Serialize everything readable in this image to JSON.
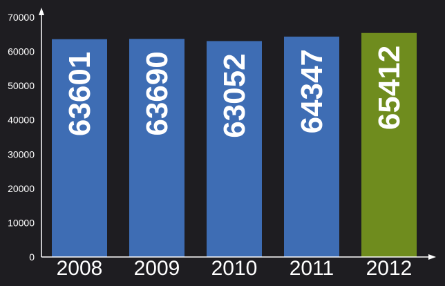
{
  "chart_data": {
    "type": "bar",
    "title": "",
    "xlabel": "",
    "ylabel": "",
    "categories": [
      "2008",
      "2009",
      "2010",
      "2011",
      "2012"
    ],
    "values": [
      63601,
      63690,
      63052,
      64347,
      65412
    ],
    "data_labels": [
      "63601",
      "63690",
      "63052",
      "64347",
      "65412"
    ],
    "ylim": [
      0,
      70000
    ],
    "yticks": [
      0,
      10000,
      20000,
      30000,
      40000,
      50000,
      60000,
      70000
    ],
    "ytick_labels": [
      "0",
      "10000",
      "20000",
      "30000",
      "40000",
      "50000",
      "60000",
      "70000"
    ],
    "grid": false,
    "legend": "none",
    "highlight_index": 4,
    "colors": {
      "background": "#1e1d21",
      "bar": "#3e6db4",
      "highlight_bar": "#6f8c1e",
      "axis": "#ffffff",
      "text": "#ffffff"
    }
  }
}
